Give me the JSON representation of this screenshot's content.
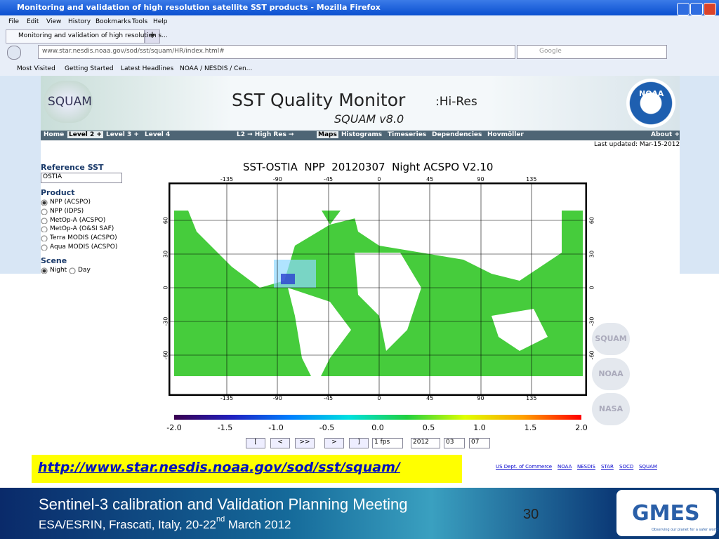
{
  "window": {
    "title": "Monitoring and validation of high resolution satellite SST products - Mozilla Firefox",
    "menu": [
      "File",
      "Edit",
      "View",
      "History",
      "Bookmarks",
      "Tools",
      "Help"
    ],
    "tab": "Monitoring and validation of high resolution s...",
    "url": "www.star.nesdis.noaa.gov/sod/sst/squam/HR/index.html#",
    "search": "Google",
    "bookmarks": [
      "Most Visited",
      "Getting Started",
      "Latest Headlines",
      "NOAA / NESDIS / Cen..."
    ]
  },
  "site": {
    "logo": "SQUAM",
    "title": "SST Quality Monitor",
    "title_suffix": ":Hi-Res",
    "subtitle": "SQUAM v8.0",
    "badge": "NOAA",
    "nav": [
      "Home",
      "Level 2 +",
      "Level 3 +",
      "Level 4",
      "L2 → High Res →",
      "Maps",
      "Histograms",
      "Timeseries",
      "Dependencies",
      "Hovmöller",
      "About +"
    ],
    "last_updated": "Last updated: Mar-15-2012"
  },
  "sidebar": {
    "reference_label": "Reference SST",
    "reference_value": "OSTIA",
    "product_label": "Product",
    "products": [
      "NPP (ACSPO)",
      "NPP (IDPS)",
      "MetOp-A (ACSPO)",
      "MetOp-A (O&SI SAF)",
      "Terra MODIS (ACSPO)",
      "Aqua MODIS (ACSPO)"
    ],
    "scene_label": "Scene",
    "scenes": [
      "Night",
      "Day"
    ]
  },
  "map": {
    "title": "SST-OSTIA  NPP  20120307  Night ACSPO V2.10",
    "lon_ticks": [
      "-135",
      "-90",
      "-45",
      "0",
      "45",
      "90",
      "135"
    ],
    "lat_ticks": [
      "60",
      "30",
      "0",
      "-30",
      "-60"
    ],
    "colorbar_ticks": [
      "-2.0",
      "-1.5",
      "-1.0",
      "-0.5",
      "0.0",
      "0.5",
      "1.0",
      "1.5",
      "2.0"
    ]
  },
  "controls": {
    "buttons": [
      "[",
      "<",
      ">>",
      ">",
      "]"
    ],
    "selects": [
      "1 fps",
      "2012",
      "03",
      "07"
    ]
  },
  "side_logos": [
    "SQUAM",
    "NOAA",
    "NASA"
  ],
  "link": "http://www.star.nesdis.noaa.gov/sod/sst/squam/",
  "footer_links": [
    "US Dept. of Commerce",
    "NOAA",
    "NESDIS",
    "STAR",
    "SOCD",
    "SQUAM"
  ],
  "slide": {
    "title": "Sentinel-3 calibration and Validation Planning Meeting",
    "subtitle": "ESA/ESRIN, Frascati, Italy, 20-22",
    "superscript": "nd",
    "subtitle_end": " March 2012",
    "page": "30",
    "logo": "GMES",
    "tagline": "Observing our planet for a safer world"
  }
}
